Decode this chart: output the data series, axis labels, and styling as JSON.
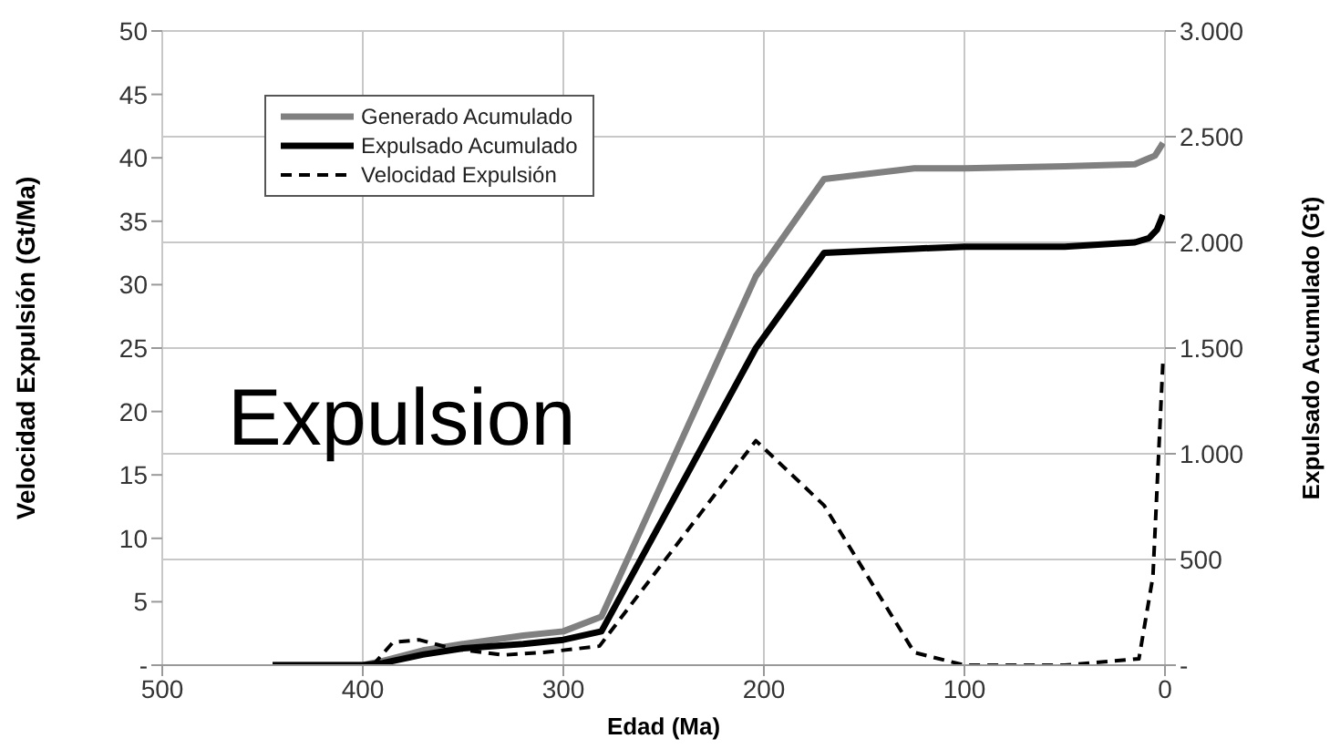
{
  "chart_data": {
    "type": "line",
    "xlabel": "Edad (Ma)",
    "ylabel": "Velocidad Expulsión (Gt/Ma)",
    "y2label": "Expulsado Acumulado (Gt)",
    "annotations": [
      "Expulsion"
    ],
    "xlim": [
      500,
      0
    ],
    "xticks": [
      500,
      400,
      300,
      200,
      100,
      0
    ],
    "ylim": [
      0,
      50
    ],
    "yticks": [
      {
        "value": 0,
        "label": "-"
      },
      5,
      10,
      15,
      20,
      25,
      30,
      35,
      40,
      45,
      50
    ],
    "y2lim": [
      0,
      3000
    ],
    "y2ticks": [
      {
        "value": 0,
        "label": "-"
      },
      500,
      {
        "value": 1000,
        "label": "1.000"
      },
      {
        "value": 1500,
        "label": "1.500"
      },
      {
        "value": 2000,
        "label": "2.000"
      },
      {
        "value": 2500,
        "label": "2.500"
      },
      {
        "value": 3000,
        "label": "3.000"
      }
    ],
    "grid": true,
    "legend": "top left",
    "marker": "none",
    "series": [
      {
        "name": "Generado Acumulado",
        "color": "#808080",
        "axis": "y2",
        "line_style": "solid",
        "x": [
          445,
          400,
          390,
          370,
          350,
          320,
          300,
          281,
          204,
          170,
          125,
          100,
          50,
          15,
          10,
          5,
          1
        ],
        "values": [
          0,
          0,
          20,
          70,
          100,
          140,
          160,
          230,
          1840,
          2300,
          2350,
          2350,
          2360,
          2370,
          2390,
          2410,
          2470
        ]
      },
      {
        "name": "Expulsado Acumulado",
        "color": "#000000",
        "axis": "y2",
        "line_style": "solid",
        "x": [
          445,
          400,
          390,
          370,
          350,
          320,
          300,
          281,
          204,
          170,
          125,
          100,
          50,
          15,
          8,
          4,
          1
        ],
        "values": [
          0,
          0,
          10,
          50,
          80,
          100,
          120,
          160,
          1500,
          1950,
          1970,
          1980,
          1980,
          2000,
          2020,
          2060,
          2130
        ]
      },
      {
        "name": "Velocidad Expulsión",
        "color": "#000000",
        "axis": "y",
        "line_style": "dashed",
        "x": [
          395,
          385,
          372,
          355,
          330,
          310,
          282,
          204,
          170,
          125,
          100,
          50,
          13,
          6,
          1
        ],
        "values": [
          0,
          1.8,
          2,
          1.3,
          0.8,
          1,
          1.5,
          17.7,
          12.6,
          1,
          0,
          0,
          0.5,
          7,
          24
        ]
      }
    ]
  }
}
